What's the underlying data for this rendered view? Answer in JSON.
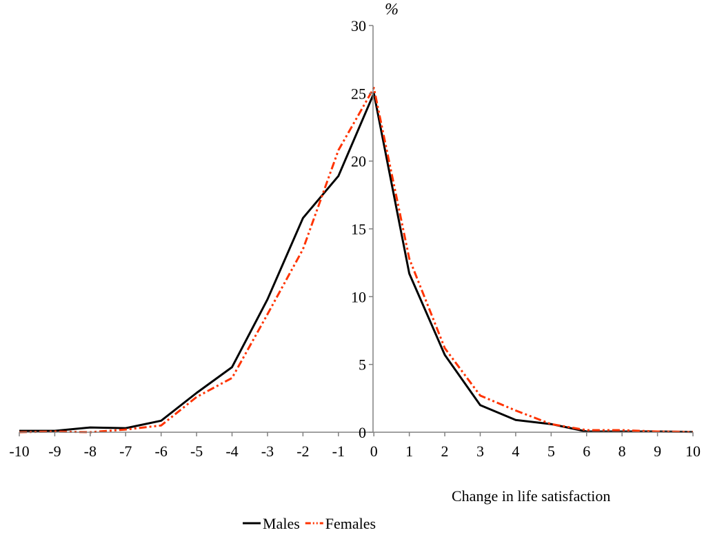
{
  "chart_data": {
    "type": "line",
    "title": "",
    "y_unit": "%",
    "xlabel": "Change in life satisfaction",
    "ylabel": "",
    "categories": [
      "-10",
      "-9",
      "-8",
      "-7",
      "-6",
      "-5",
      "-4",
      "-3",
      "-2",
      "-1",
      "0",
      "1",
      "2",
      "3",
      "4",
      "5",
      "6",
      "8",
      "9",
      "10"
    ],
    "ylim": [
      0,
      30
    ],
    "yticks": [
      0,
      5,
      10,
      15,
      20,
      25,
      30
    ],
    "grid": false,
    "legend_position": "bottom",
    "series": [
      {
        "name": "Males",
        "color": "#000000",
        "style": "solid",
        "values": [
          0.1,
          0.1,
          0.35,
          0.3,
          0.85,
          2.9,
          4.8,
          9.8,
          15.8,
          18.9,
          25.0,
          11.7,
          5.7,
          2.0,
          0.9,
          0.6,
          0.05,
          0.05,
          0.05,
          0.02
        ]
      },
      {
        "name": "Females",
        "color": "#ff3300",
        "style": "dash-dot-dot",
        "values": [
          0.0,
          0.05,
          0.0,
          0.2,
          0.5,
          2.6,
          4.0,
          8.7,
          13.5,
          20.8,
          25.4,
          12.8,
          6.2,
          2.7,
          1.6,
          0.6,
          0.15,
          0.15,
          0.05,
          0.02
        ]
      }
    ]
  }
}
